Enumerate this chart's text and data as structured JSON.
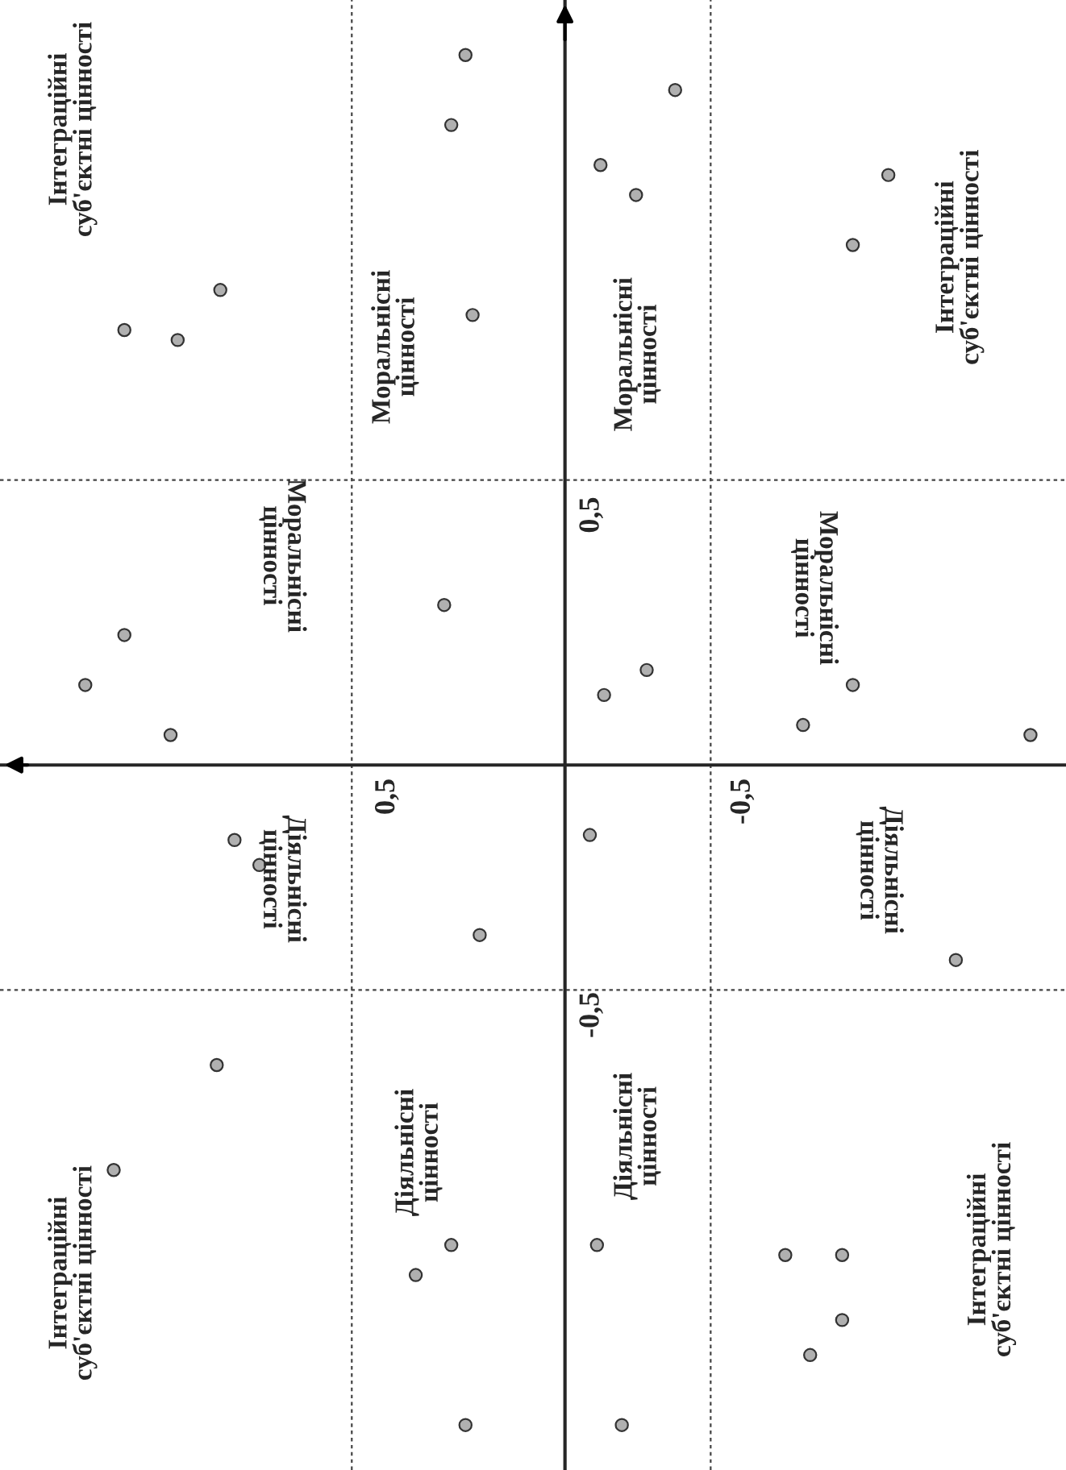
{
  "chart_data": {
    "type": "scatter",
    "x": [
      0.97,
      1.24,
      1.09,
      1.35,
      1.24,
      1.11,
      0.93,
      0.86,
      0.98,
      1.27,
      0.28,
      0.32,
      0.26,
      0.34,
      0.24,
      -0.07,
      0.42,
      0.32,
      0.28,
      -0.1,
      -0.2,
      -0.31,
      -0.11,
      -0.23,
      -0.09,
      -0.16,
      -0.91,
      -0.81,
      -0.81,
      -0.67,
      -1.31,
      -1.1,
      -0.62,
      -0.78,
      -0.78,
      -0.69
    ],
    "values": [
      0.95,
      0.87,
      0.85,
      0.16,
      0.26,
      0.06,
      -0.15,
      -0.2,
      -0.6,
      -0.81,
      1.42,
      1.28,
      0.9,
      0.32,
      -0.34,
      -0.14,
      -1.02,
      -0.96,
      -1.32,
      1.2,
      1.14,
      1.35,
      0.14,
      0.19,
      -0.96,
      -1.32,
      1.18,
      1.04,
      0.16,
      0.08,
      0.06,
      -0.39,
      -0.98,
      -0.98,
      -1.11,
      -1.18
    ],
    "color": "#b0b0b0",
    "marker": "circle",
    "xlim": [
      1.59,
      -1.41
    ],
    "ylim": [
      -1.41,
      1.53
    ],
    "xticks": [
      {
        "value": 0.5,
        "label": "0,5"
      },
      {
        "value": -0.5,
        "label": "-0,5"
      }
    ],
    "yticks": [
      {
        "value": 0.5,
        "label": "0,5"
      },
      {
        "value": -0.5,
        "label": "-0,5"
      }
    ],
    "ref_lines": [
      {
        "axis": "x",
        "value": 0.6,
        "line_style": "dashed"
      },
      {
        "axis": "x",
        "value": -0.41,
        "line_style": "dashed"
      },
      {
        "axis": "y",
        "value": 0.57,
        "line_style": "dashed"
      },
      {
        "axis": "y",
        "value": -0.45,
        "line_style": "dashed"
      }
    ],
    "annotations": [
      "Інтеграційні\nсуб'єктні цінності",
      "Моральнісні\nцінності",
      "Діяльнісні\nцінності",
      "Інтеграційні\nсуб'єктні цінності",
      "Моральнісні\nцінності",
      "Діяльнісні\nцінності",
      "Моральнісні\nцінності",
      "Діяльнісні\nцінності",
      "Моральнісні\nцінності",
      "Діяльнісні\nцінності",
      "Інтеграційні\nсуб'єктні цінності",
      "Інтеграційні\nсуб'єктні цінності"
    ]
  }
}
